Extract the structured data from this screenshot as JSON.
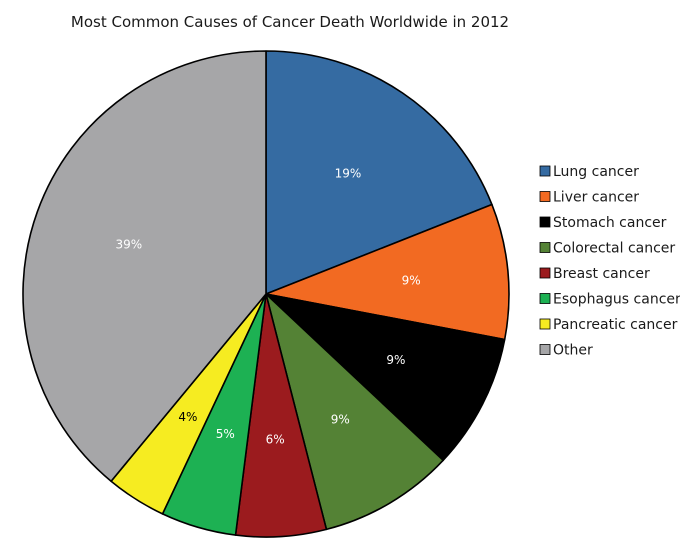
{
  "chart_data": {
    "type": "pie",
    "title": "Most Common Causes of Cancer Death Worldwide in 2012",
    "slices": [
      {
        "name": "Lung cancer",
        "value": 19,
        "label": "19%",
        "color": "#356ba2",
        "label_color": "#ffffff"
      },
      {
        "name": "Liver cancer",
        "value": 9,
        "label": "9%",
        "color": "#f26a22",
        "label_color": "#ffffff"
      },
      {
        "name": "Stomach cancer",
        "value": 9,
        "label": "9%",
        "color": "#000000",
        "label_color": "#ffffff"
      },
      {
        "name": "Colorectal cancer",
        "value": 9,
        "label": "9%",
        "color": "#548235",
        "label_color": "#ffffff"
      },
      {
        "name": "Breast cancer",
        "value": 6,
        "label": "6%",
        "color": "#9b1b1e",
        "label_color": "#ffffff"
      },
      {
        "name": "Esophagus cancer",
        "value": 5,
        "label": "5%",
        "color": "#1db153",
        "label_color": "#ffffff"
      },
      {
        "name": "Pancreatic cancer",
        "value": 4,
        "label": "4%",
        "color": "#f6ec21",
        "label_color": "#000000"
      },
      {
        "name": "Other",
        "value": 39,
        "label": "39%",
        "color": "#a6a6a8",
        "label_color": "#ffffff"
      }
    ],
    "legend_position": "right"
  }
}
